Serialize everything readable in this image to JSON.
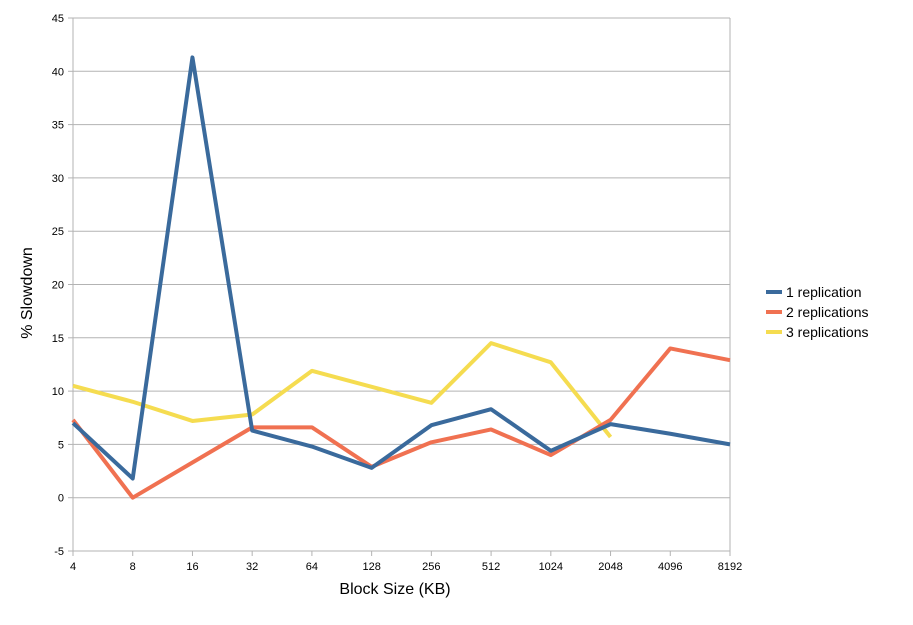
{
  "chart_data": {
    "type": "line",
    "title": "",
    "xlabel": "Block Size (KB)",
    "ylabel": "% Slowdown",
    "categories": [
      "4",
      "8",
      "16",
      "32",
      "64",
      "128",
      "256",
      "512",
      "1024",
      "2048",
      "4096",
      "8192"
    ],
    "ylim": [
      -5,
      45
    ],
    "yticks": [
      -5,
      0,
      5,
      10,
      15,
      20,
      25,
      30,
      35,
      40,
      45
    ],
    "grid": true,
    "legend_position": "right",
    "series": [
      {
        "name": "1 replication",
        "color": "#3a6a9c",
        "values": [
          7.0,
          1.8,
          41.3,
          6.3,
          4.8,
          2.8,
          6.8,
          8.3,
          4.4,
          6.9,
          6.0,
          5.0
        ]
      },
      {
        "name": "2 replications",
        "color": "#f07151",
        "values": [
          7.3,
          0.0,
          3.3,
          6.6,
          6.6,
          2.9,
          5.2,
          6.4,
          4.0,
          7.3,
          14.0,
          12.9
        ]
      },
      {
        "name": "3 replications",
        "color": "#f5dc50",
        "values": [
          10.5,
          9.0,
          7.2,
          7.8,
          11.9,
          10.4,
          8.9,
          14.5,
          12.7,
          5.7,
          null,
          null
        ]
      }
    ]
  }
}
